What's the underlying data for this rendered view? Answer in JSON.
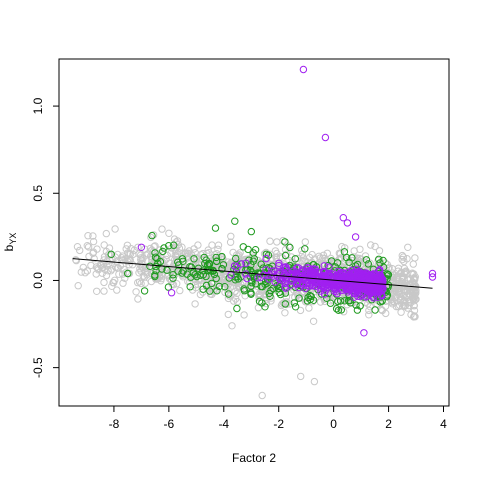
{
  "chart_data": {
    "type": "scatter",
    "title": "",
    "xlabel": "Factor 2",
    "ylabel_main": "b",
    "ylabel_sub": "YX",
    "xlim": [
      -10.0,
      4.2
    ],
    "ylim": [
      -0.72,
      1.27
    ],
    "x_ticks": [
      -8,
      -6,
      -4,
      -2,
      0,
      2,
      4
    ],
    "x_tick_labels": [
      "-8",
      "-6",
      "-4",
      "-2",
      "0",
      "2",
      "4"
    ],
    "y_ticks": [
      -0.5,
      0.0,
      0.5,
      1.0
    ],
    "y_tick_labels": [
      "-0.5",
      "0.0",
      "0.5",
      "1.0"
    ],
    "grid": false,
    "legend": "none",
    "series_colors": {
      "gray": "#c8c8c8",
      "green": "#1f9a1f",
      "purple": "#a020f0",
      "line": "#000000"
    },
    "regression_line": {
      "x": [
        -9.5,
        3.6
      ],
      "y": [
        0.125,
        -0.045
      ]
    },
    "cloud": {
      "gray": {
        "n": 1400,
        "x_range": [
          -9.5,
          3.0
        ],
        "y_spread": 0.075
      },
      "green": {
        "n": 320,
        "x_range": [
          -7.0,
          2.0
        ],
        "y_spread": 0.075
      },
      "purple": {
        "n": 650,
        "x_range": [
          -4.0,
          1.8
        ],
        "y_spread": 0.03
      }
    },
    "notable_points": [
      {
        "group": "purple",
        "x": -1.1,
        "y": 1.21
      },
      {
        "group": "purple",
        "x": -0.3,
        "y": 0.82
      },
      {
        "group": "purple",
        "x": 0.35,
        "y": 0.36
      },
      {
        "group": "purple",
        "x": 0.5,
        "y": 0.33
      },
      {
        "group": "purple",
        "x": 1.1,
        "y": -0.3
      },
      {
        "group": "purple",
        "x": 0.8,
        "y": 0.25
      },
      {
        "group": "purple",
        "x": 3.6,
        "y": 0.04
      },
      {
        "group": "purple",
        "x": 3.6,
        "y": 0.02
      },
      {
        "group": "purple",
        "x": -5.9,
        "y": -0.07
      },
      {
        "group": "purple",
        "x": -7.0,
        "y": 0.19
      },
      {
        "group": "green",
        "x": -3.6,
        "y": 0.34
      },
      {
        "group": "green",
        "x": -4.3,
        "y": 0.3
      },
      {
        "group": "green",
        "x": -3.0,
        "y": 0.28
      },
      {
        "group": "green",
        "x": -8.1,
        "y": 0.15
      },
      {
        "group": "green",
        "x": -7.5,
        "y": 0.04
      },
      {
        "group": "gray",
        "x": -2.6,
        "y": -0.66
      },
      {
        "group": "gray",
        "x": -1.2,
        "y": -0.55
      },
      {
        "group": "gray",
        "x": -0.7,
        "y": -0.58
      },
      {
        "group": "gray",
        "x": -9.3,
        "y": -0.03
      },
      {
        "group": "gray",
        "x": -3.7,
        "y": -0.26
      },
      {
        "group": "gray",
        "x": 2.7,
        "y": 0.19
      }
    ]
  }
}
